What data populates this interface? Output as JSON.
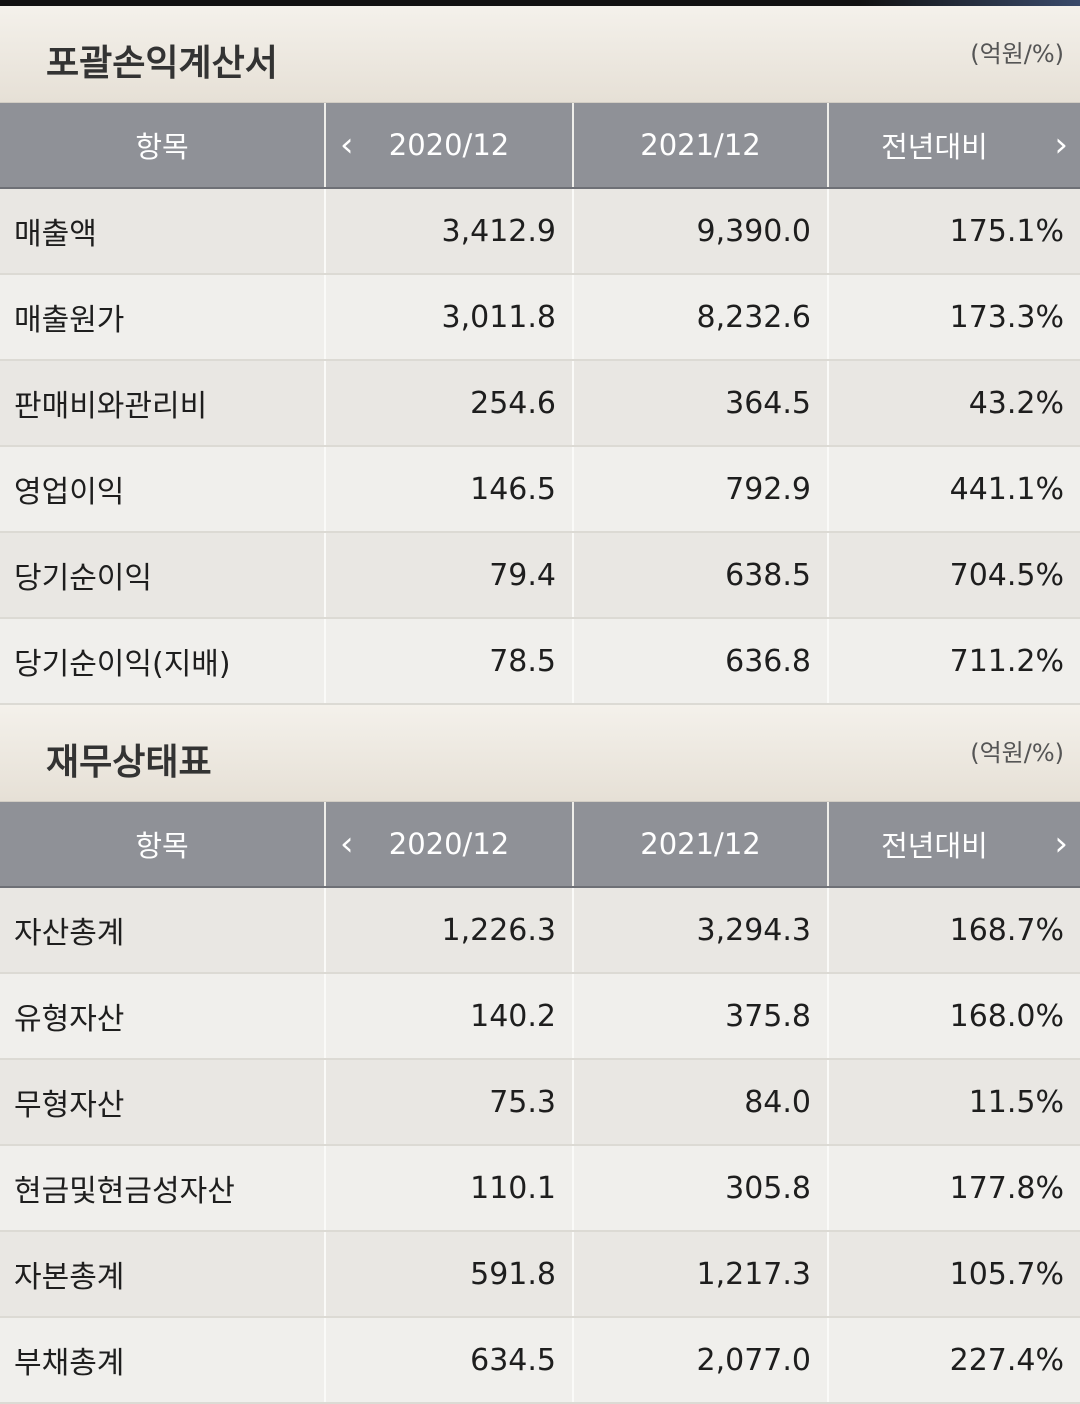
{
  "income_statement": {
    "title": "포괄손익계산서",
    "unit": "(억원/%)",
    "headers": {
      "item": "항목",
      "prev": "2020/12",
      "curr": "2021/12",
      "yoy": "전년대비"
    },
    "rows": [
      {
        "label": "매출액",
        "prev": "3,412.9",
        "curr": "9,390.0",
        "yoy": "175.1%"
      },
      {
        "label": "매출원가",
        "prev": "3,011.8",
        "curr": "8,232.6",
        "yoy": "173.3%"
      },
      {
        "label": "판매비와관리비",
        "prev": "254.6",
        "curr": "364.5",
        "yoy": "43.2%"
      },
      {
        "label": "영업이익",
        "prev": "146.5",
        "curr": "792.9",
        "yoy": "441.1%"
      },
      {
        "label": "당기순이익",
        "prev": "79.4",
        "curr": "638.5",
        "yoy": "704.5%"
      },
      {
        "label": "당기순이익(지배)",
        "prev": "78.5",
        "curr": "636.8",
        "yoy": "711.2%"
      }
    ]
  },
  "balance_sheet": {
    "title": "재무상태표",
    "unit": "(억원/%)",
    "headers": {
      "item": "항목",
      "prev": "2020/12",
      "curr": "2021/12",
      "yoy": "전년대비"
    },
    "rows": [
      {
        "label": "자산총계",
        "prev": "1,226.3",
        "curr": "3,294.3",
        "yoy": "168.7%"
      },
      {
        "label": "유형자산",
        "prev": "140.2",
        "curr": "375.8",
        "yoy": "168.0%"
      },
      {
        "label": "무형자산",
        "prev": "75.3",
        "curr": "84.0",
        "yoy": "11.5%"
      },
      {
        "label": "현금및현금성자산",
        "prev": "110.1",
        "curr": "305.8",
        "yoy": "177.8%"
      },
      {
        "label": "자본총계",
        "prev": "591.8",
        "curr": "1,217.3",
        "yoy": "105.7%"
      },
      {
        "label": "부채총계",
        "prev": "634.5",
        "curr": "2,077.0",
        "yoy": "227.4%"
      }
    ]
  },
  "icons": {
    "prev_nav": "chevron-left-icon",
    "next_nav": "chevron-right-icon"
  }
}
